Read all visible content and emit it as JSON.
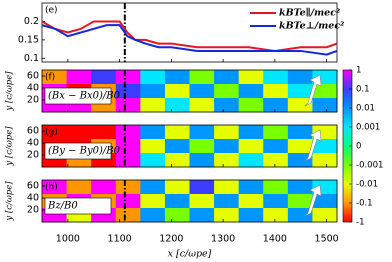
{
  "chart_data": [
    {
      "type": "line",
      "panel": "(e)",
      "x": [
        950,
        975,
        1000,
        1025,
        1050,
        1075,
        1100,
        1115,
        1130,
        1150,
        1175,
        1200,
        1250,
        1300,
        1350,
        1400,
        1450,
        1500,
        1520
      ],
      "series": [
        {
          "name": "kBTe∥/mec²",
          "color": "#e8141e",
          "values": [
            0.2,
            0.18,
            0.17,
            0.18,
            0.2,
            0.2,
            0.2,
            0.17,
            0.15,
            0.15,
            0.14,
            0.14,
            0.13,
            0.13,
            0.13,
            0.12,
            0.13,
            0.13,
            0.14
          ]
        },
        {
          "name": "kBTe⊥/mec²",
          "color": "#1428e0",
          "values": [
            0.19,
            0.18,
            0.16,
            0.17,
            0.18,
            0.19,
            0.19,
            0.16,
            0.15,
            0.14,
            0.13,
            0.13,
            0.12,
            0.12,
            0.12,
            0.12,
            0.12,
            0.11,
            0.12
          ]
        }
      ],
      "xlim": [
        950,
        1520
      ],
      "ylim": [
        0.09,
        0.25
      ],
      "yticks": [
        0.1,
        0.15,
        0.2
      ],
      "vline_x": 1110,
      "legend": "upper right"
    },
    {
      "type": "heatmap",
      "panel": "(f)",
      "label": "(Bx − Bx0)/B0",
      "ylabel": "y [c/ωpe]",
      "xlim": [
        950,
        1520
      ],
      "ylim": [
        0,
        70
      ],
      "yticks": [
        20,
        40,
        60
      ],
      "vline_x": 1110,
      "values": [
        [
          -0.1,
          1,
          0.1,
          1,
          0.001,
          0.01,
          -0.001,
          0.01,
          -0.01,
          0.001,
          0.01,
          0.001
        ],
        [
          1,
          -1,
          -0.1,
          0.1,
          0.01,
          -0.01,
          0.01,
          -0.001,
          0.01,
          -0.01,
          0.001,
          -0.001
        ],
        [
          1,
          1,
          -0.1,
          1,
          -0.01,
          0.001,
          -0.01,
          0.01,
          -0.001,
          0.01,
          -0.01,
          0.01
        ]
      ]
    },
    {
      "type": "heatmap",
      "panel": "(g)",
      "label": "(By − By0)/B0",
      "ylabel": "y [c/ωpe]",
      "xlim": [
        950,
        1520
      ],
      "ylim": [
        0,
        70
      ],
      "yticks": [
        20,
        40,
        60
      ],
      "vline_x": 1110,
      "values": [
        [
          -1,
          -1,
          -1,
          1,
          0.01,
          -0.01,
          0.01,
          -0.01,
          0.01,
          -0.001,
          0.01,
          -0.01
        ],
        [
          -1,
          -1,
          -0.1,
          1,
          -0.01,
          0.01,
          -0.001,
          0.01,
          -0.01,
          0.01,
          -0.01,
          0.001
        ],
        [
          -1,
          -0.1,
          -1,
          1,
          0.001,
          -0.01,
          0.01,
          -0.01,
          0.001,
          -0.01,
          0.01,
          -0.01
        ]
      ]
    },
    {
      "type": "heatmap",
      "panel": "(h)",
      "label": "Bz/B0",
      "ylabel": "y [c/ωpe]",
      "xlabel": "x [c/ωpe]",
      "xlim": [
        950,
        1520
      ],
      "ylim": [
        0,
        70
      ],
      "yticks": [
        20,
        40,
        60
      ],
      "xticks": [
        1000,
        1100,
        1200,
        1300,
        1400,
        1500
      ],
      "vline_x": 1110,
      "values": [
        [
          1,
          -0.1,
          1,
          -0.1,
          0.01,
          -0.01,
          0.1,
          -0.01,
          0.01,
          -0.001,
          0.01,
          0.001
        ],
        [
          -0.1,
          1,
          -0.1,
          1,
          -0.01,
          0.01,
          -0.01,
          0.01,
          -0.01,
          0.01,
          -0.001,
          0.01
        ],
        [
          1,
          -0.01,
          1,
          -0.1,
          0.01,
          -0.001,
          0.01,
          -0.01,
          0.01,
          -0.01,
          0.01,
          -0.01
        ]
      ]
    }
  ],
  "colorbar": {
    "ticks": [
      1,
      0.1,
      0.01,
      0.001,
      0,
      -0.001,
      -0.01,
      -0.1,
      -1
    ],
    "colors": [
      "#ff00ff",
      "#3c3cff",
      "#0096ff",
      "#00e6ff",
      "#00ff78",
      "#78ff00",
      "#e6ff00",
      "#ff9600",
      "#ff0000"
    ]
  }
}
